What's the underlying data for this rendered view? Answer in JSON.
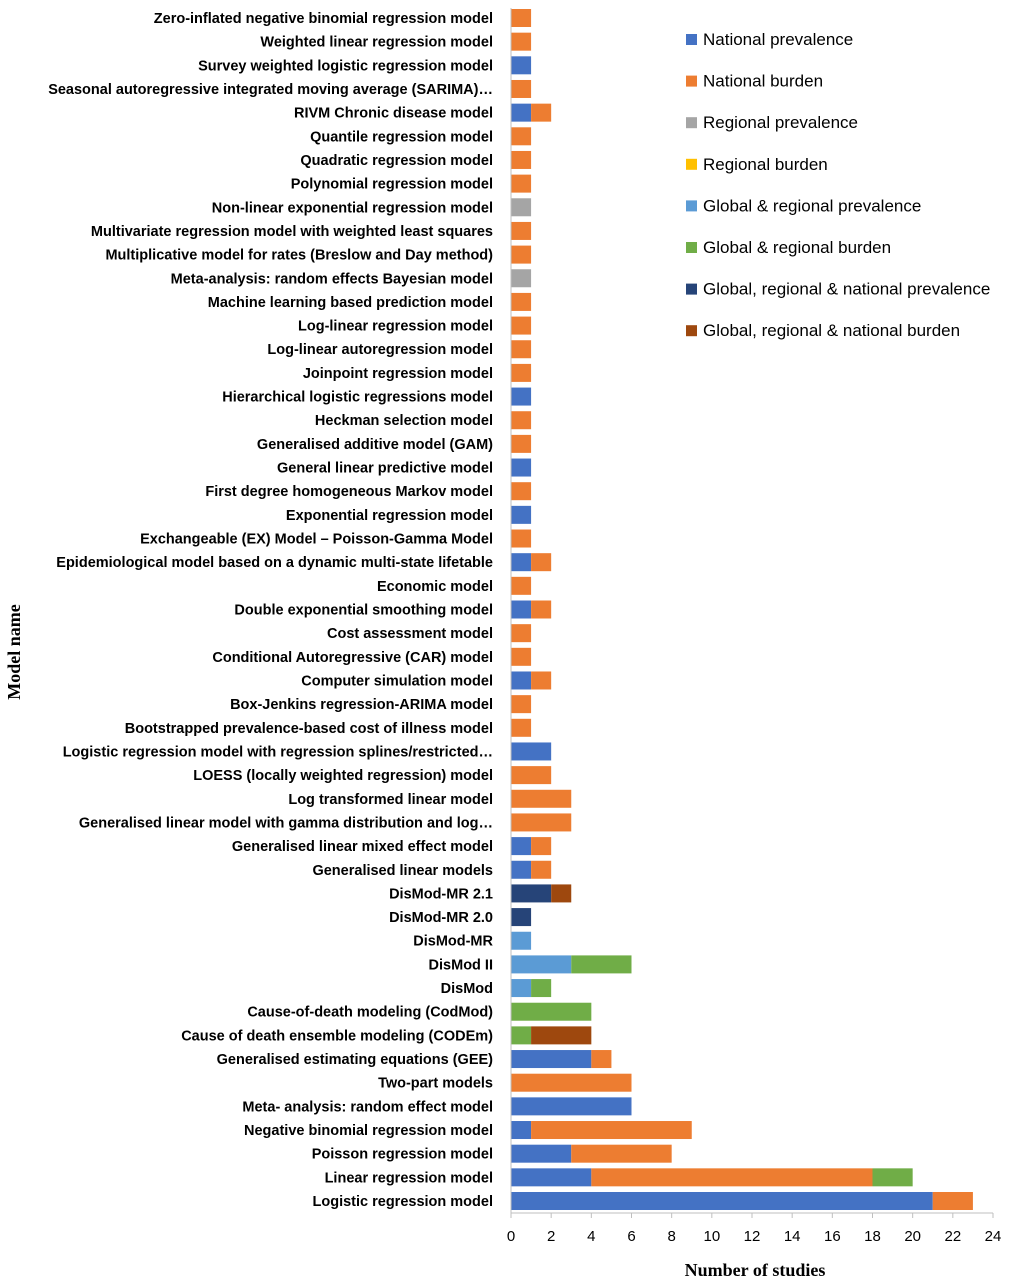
{
  "chart_data": {
    "type": "bar",
    "orientation": "horizontal",
    "stacked": true,
    "xlabel": "Number of studies",
    "ylabel": "Model name",
    "xlim": [
      0,
      24
    ],
    "xticks": [
      "0",
      "2",
      "4",
      "6",
      "8",
      "10",
      "12",
      "14",
      "16",
      "18",
      "20",
      "22",
      "24"
    ],
    "grid": false,
    "legend_position": "right",
    "categories": [
      "Zero-inflated negative binomial regression model",
      "Weighted linear regression model",
      "Survey weighted logistic regression model",
      "Seasonal autoregressive integrated moving average (SARIMA)…",
      "RIVM Chronic disease model",
      "Quantile regression model",
      "Quadratic regression model",
      "Polynomial regression model",
      "Non-linear exponential regression model",
      "Multivariate regression model with weighted least squares",
      "Multiplicative model for rates (Breslow and Day method)",
      "Meta-analysis: random effects Bayesian model",
      "Machine learning based prediction model",
      "Log-linear regression model",
      "Log-linear autoregression model",
      "Joinpoint regression model",
      "Hierarchical logistic regressions model",
      "Heckman selection model",
      "Generalised additive model (GAM)",
      "General linear predictive model",
      "First degree homogeneous Markov model",
      "Exponential regression model",
      "Exchangeable (EX) Model – Poisson-Gamma Model",
      "Epidemiological model based on a dynamic multi-state lifetable",
      "Economic model",
      "Double exponential smoothing model",
      "Cost assessment model",
      "Conditional Autoregressive (CAR) model",
      "Computer simulation model",
      "Box-Jenkins regression-ARIMA model",
      "Bootstrapped prevalence-based cost of illness model",
      "Logistic regression model with regression splines/restricted…",
      "LOESS (locally weighted regression) model",
      "Log transformed linear model",
      "Generalised linear model with gamma distribution and log…",
      "Generalised linear mixed effect model",
      "Generalised linear models",
      "DisMod-MR 2.1",
      "DisMod-MR 2.0",
      "DisMod-MR",
      "DisMod II",
      "DisMod",
      "Cause-of-death modeling (CodMod)",
      "Cause of death ensemble modeling (CODEm)",
      "Generalised estimating equations (GEE)",
      "Two-part models",
      "Meta- analysis: random effect model",
      "Negative binomial regression model",
      "Poisson regression model",
      "Linear regression model",
      "Logistic regression model"
    ],
    "series": [
      {
        "name": "National prevalence",
        "color": "#4472C4",
        "values": [
          0,
          0,
          1,
          0,
          1,
          0,
          0,
          0,
          0,
          0,
          0,
          0,
          0,
          0,
          0,
          0,
          1,
          0,
          0,
          1,
          0,
          1,
          0,
          1,
          0,
          1,
          0,
          0,
          1,
          0,
          0,
          2,
          0,
          0,
          0,
          1,
          1,
          0,
          0,
          0,
          0,
          0,
          0,
          0,
          4,
          0,
          6,
          1,
          3,
          4,
          21
        ]
      },
      {
        "name": "National burden",
        "color": "#ED7D31",
        "values": [
          1,
          1,
          0,
          1,
          1,
          1,
          1,
          1,
          0,
          1,
          1,
          0,
          1,
          1,
          1,
          1,
          0,
          1,
          1,
          0,
          1,
          0,
          1,
          1,
          1,
          1,
          1,
          1,
          1,
          1,
          1,
          0,
          2,
          3,
          3,
          1,
          1,
          0,
          0,
          0,
          0,
          0,
          0,
          0,
          1,
          6,
          0,
          8,
          5,
          14,
          2
        ]
      },
      {
        "name": "Regional prevalence",
        "color": "#A5A5A5",
        "values": [
          0,
          0,
          0,
          0,
          0,
          0,
          0,
          0,
          1,
          0,
          0,
          1,
          0,
          0,
          0,
          0,
          0,
          0,
          0,
          0,
          0,
          0,
          0,
          0,
          0,
          0,
          0,
          0,
          0,
          0,
          0,
          0,
          0,
          0,
          0,
          0,
          0,
          0,
          0,
          0,
          0,
          0,
          0,
          0,
          0,
          0,
          0,
          0,
          0,
          0,
          0
        ]
      },
      {
        "name": "Regional burden",
        "color": "#FFC000",
        "values": [
          0,
          0,
          0,
          0,
          0,
          0,
          0,
          0,
          0,
          0,
          0,
          0,
          0,
          0,
          0,
          0,
          0,
          0,
          0,
          0,
          0,
          0,
          0,
          0,
          0,
          0,
          0,
          0,
          0,
          0,
          0,
          0,
          0,
          0,
          0,
          0,
          0,
          0,
          0,
          0,
          0,
          0,
          0,
          0,
          0,
          0,
          0,
          0,
          0,
          0,
          0
        ]
      },
      {
        "name": "Global & regional prevalence",
        "color": "#5B9BD5",
        "values": [
          0,
          0,
          0,
          0,
          0,
          0,
          0,
          0,
          0,
          0,
          0,
          0,
          0,
          0,
          0,
          0,
          0,
          0,
          0,
          0,
          0,
          0,
          0,
          0,
          0,
          0,
          0,
          0,
          0,
          0,
          0,
          0,
          0,
          0,
          0,
          0,
          0,
          0,
          0,
          1,
          3,
          1,
          0,
          0,
          0,
          0,
          0,
          0,
          0,
          0,
          0
        ]
      },
      {
        "name": "Global & regional burden",
        "color": "#70AD47",
        "values": [
          0,
          0,
          0,
          0,
          0,
          0,
          0,
          0,
          0,
          0,
          0,
          0,
          0,
          0,
          0,
          0,
          0,
          0,
          0,
          0,
          0,
          0,
          0,
          0,
          0,
          0,
          0,
          0,
          0,
          0,
          0,
          0,
          0,
          0,
          0,
          0,
          0,
          0,
          0,
          0,
          3,
          1,
          4,
          1,
          0,
          0,
          0,
          0,
          0,
          2,
          0
        ]
      },
      {
        "name": "Global, regional & national prevalence",
        "color": "#264478",
        "values": [
          0,
          0,
          0,
          0,
          0,
          0,
          0,
          0,
          0,
          0,
          0,
          0,
          0,
          0,
          0,
          0,
          0,
          0,
          0,
          0,
          0,
          0,
          0,
          0,
          0,
          0,
          0,
          0,
          0,
          0,
          0,
          0,
          0,
          0,
          0,
          0,
          0,
          2,
          1,
          0,
          0,
          0,
          0,
          0,
          0,
          0,
          0,
          0,
          0,
          0,
          0
        ]
      },
      {
        "name": "Global, regional & national burden",
        "color": "#9E480E",
        "values": [
          0,
          0,
          0,
          0,
          0,
          0,
          0,
          0,
          0,
          0,
          0,
          0,
          0,
          0,
          0,
          0,
          0,
          0,
          0,
          0,
          0,
          0,
          0,
          0,
          0,
          0,
          0,
          0,
          0,
          0,
          0,
          0,
          0,
          0,
          0,
          0,
          0,
          1,
          0,
          0,
          0,
          0,
          0,
          3,
          0,
          0,
          0,
          0,
          0,
          0,
          0
        ]
      }
    ]
  }
}
